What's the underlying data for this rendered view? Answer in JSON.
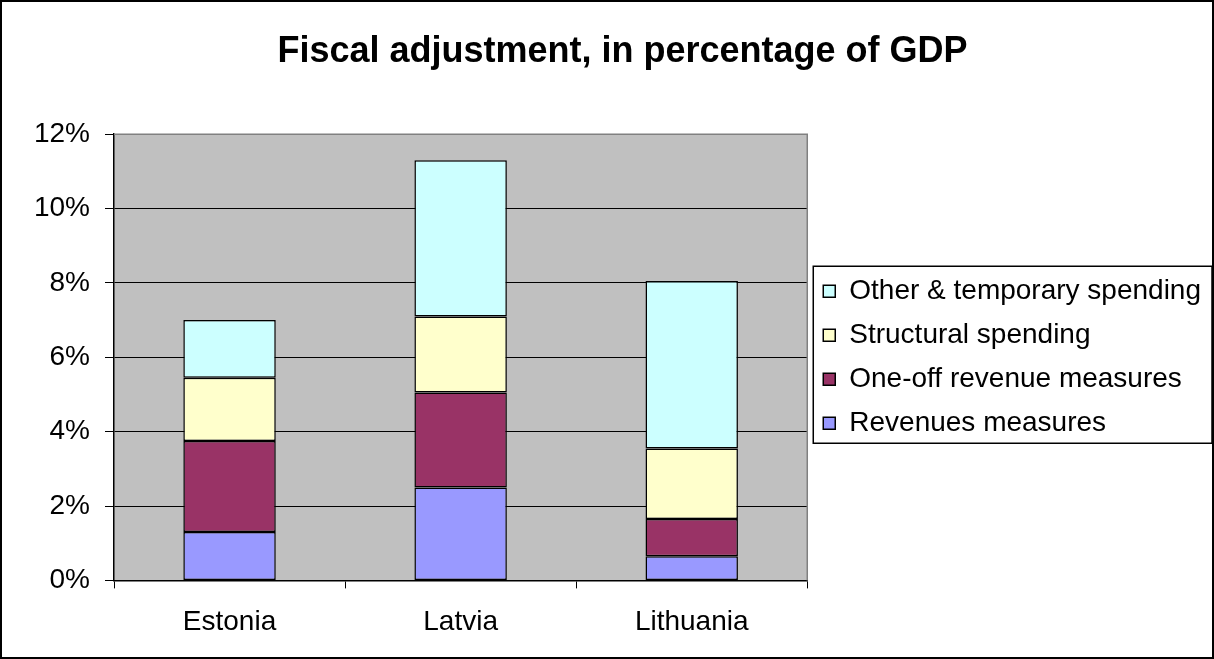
{
  "chart_data": {
    "type": "bar",
    "title": "Fiscal adjustment, in percentage of GDP",
    "categories": [
      "Estonia",
      "Latvia",
      "Lithuania"
    ],
    "stacked": true,
    "series": [
      {
        "name": "Revenues measures",
        "color": "#9999ff",
        "values": [
          1.3,
          2.5,
          0.65
        ]
      },
      {
        "name": "One-off revenue measures",
        "color": "#993366",
        "values": [
          2.45,
          2.55,
          1.0
        ]
      },
      {
        "name": "Structural spending",
        "color": "#ffffcc",
        "values": [
          1.7,
          2.05,
          1.9
        ]
      },
      {
        "name": "Other & temporary spending",
        "color": "#ccffff",
        "values": [
          1.55,
          4.2,
          4.5
        ]
      }
    ],
    "ylim": [
      0,
      12
    ],
    "yticks": [
      {
        "value": 0,
        "label": "0%"
      },
      {
        "value": 2,
        "label": "2%"
      },
      {
        "value": 4,
        "label": "4%"
      },
      {
        "value": 6,
        "label": "6%"
      },
      {
        "value": 8,
        "label": "8%"
      },
      {
        "value": 10,
        "label": "10%"
      },
      {
        "value": 12,
        "label": "12%"
      }
    ],
    "grid": "y",
    "legend": "right"
  }
}
